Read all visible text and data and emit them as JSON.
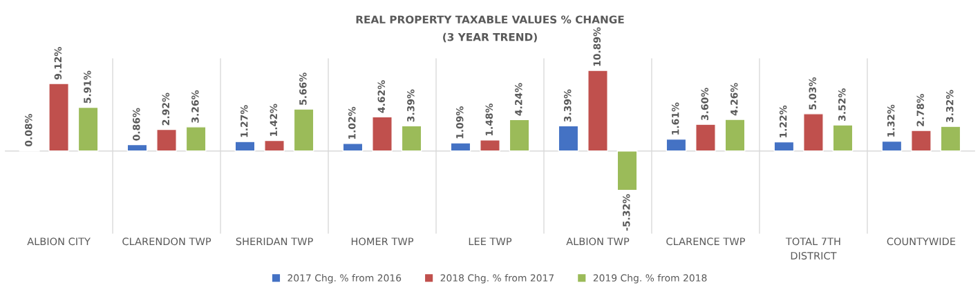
{
  "chart_data": {
    "type": "bar",
    "title": "REAL PROPERTY TAXABLE VALUES % CHANGE",
    "subtitle": "(3 YEAR TREND)",
    "categories": [
      "ALBION CITY",
      "CLARENDON TWP",
      "SHERIDAN TWP",
      "HOMER TWP",
      "LEE TWP",
      "ALBION TWP",
      "CLARENCE TWP",
      "TOTAL 7TH\nDISTRICT",
      "COUNTYWIDE"
    ],
    "series": [
      {
        "name": "2017 Chg. % from 2016",
        "color": "#4472c4",
        "values": [
          0.08,
          0.86,
          1.27,
          1.02,
          1.09,
          3.39,
          1.61,
          1.22,
          1.32
        ],
        "value_labels": [
          "0.08%",
          "0.86%",
          "1.27%",
          "1.02%",
          "1.09%",
          "3.39%",
          "1.61%",
          "1.22%",
          "1.32%"
        ]
      },
      {
        "name": "2018 Chg. % from 2017",
        "color": "#c0504d",
        "values": [
          9.12,
          2.92,
          1.42,
          4.62,
          1.48,
          10.89,
          3.6,
          5.03,
          2.78
        ],
        "value_labels": [
          "9.12%",
          "2.92%",
          "1.42%",
          "4.62%",
          "1.48%",
          "10.89%",
          "3.60%",
          "5.03%",
          "2.78%"
        ]
      },
      {
        "name": "2019 Chg. % from 2018",
        "color": "#9bbb59",
        "values": [
          5.91,
          3.26,
          5.66,
          3.39,
          4.24,
          -5.32,
          4.26,
          3.52,
          3.32
        ],
        "value_labels": [
          "5.91%",
          "3.26%",
          "5.66%",
          "3.39%",
          "4.24%",
          "-5.32%",
          "4.26%",
          "3.52%",
          "3.32%"
        ]
      }
    ],
    "grid": "x",
    "legend": "bottom"
  }
}
